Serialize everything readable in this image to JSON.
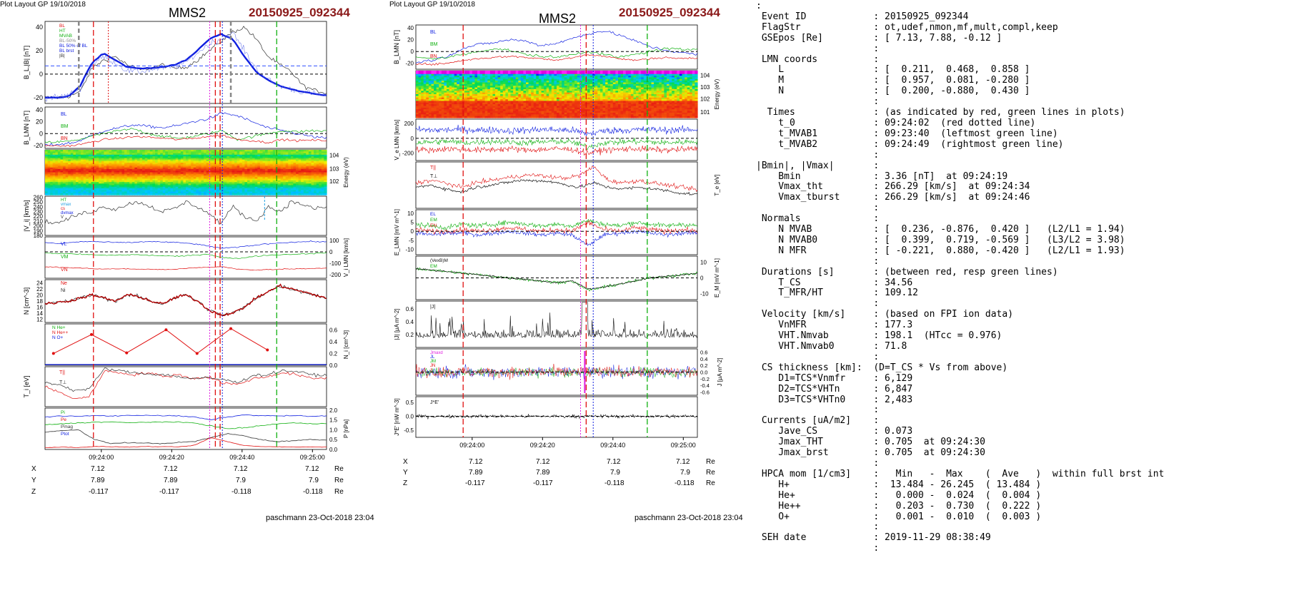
{
  "left_page": {
    "header": "Plot Layout GP 19/10/2018",
    "spacecraft": "MMS2",
    "event": "20150925_092344",
    "footer": "paschmann 23-Oct-2018 23:04",
    "coords": {
      "labels": [
        "X",
        "Y",
        "Z"
      ],
      "unit": "Re",
      "values": [
        [
          "7.12",
          "7.12",
          "7.12",
          "7.12"
        ],
        [
          "7.89",
          "7.89",
          "7.9",
          "7.9"
        ],
        [
          "-0.117",
          "-0.117",
          "-0.118",
          "-0.118"
        ]
      ]
    },
    "time_ticks": [
      "09:24:00",
      "09:24:20",
      "09:24:40",
      "09:25:00"
    ],
    "panels": [
      {
        "ylabel": "B_L,|B| [nT]",
        "ticks": [
          "40",
          "20",
          "0",
          "-20"
        ],
        "legend": [
          "BL",
          "HT",
          "MVAB",
          "BL-50%",
          "BL 50% of BL",
          "BL brst",
          "|B|"
        ]
      },
      {
        "ylabel": "B_LMN [nT]",
        "ticks": [
          "40",
          "20",
          "0",
          "-20"
        ],
        "legend": [
          "BL",
          "BM",
          "BN"
        ]
      },
      {
        "ylabel": "Energy (eV)",
        "ticks": [
          "10^4",
          "10^3",
          "10^2"
        ]
      },
      {
        "ylabel": "|V_i| [km/s]",
        "ticks": [
          "260",
          "250",
          "240",
          "230",
          "220",
          "210",
          "200",
          "190",
          "180"
        ],
        "legend": [
          "HT",
          "vmax",
          "cs",
          "dvmax",
          "V"
        ]
      },
      {
        "ylabel": "V_i LMN [km/s]",
        "ticks": [
          "100",
          "0",
          "-100",
          "-200"
        ],
        "legend": [
          "VL",
          "VM",
          "VN"
        ]
      },
      {
        "ylabel": "N [cm^-3]",
        "ticks": [
          "24",
          "22",
          "20",
          "18",
          "16",
          "14",
          "12"
        ],
        "legend": [
          "Ne",
          "Ni"
        ]
      },
      {
        "ylabel": "N_i [cm^-3]",
        "ticks": [
          "0.6",
          "0.4",
          "0.2",
          "0.0"
        ],
        "legend": [
          "N He+",
          "N He++",
          "N O+"
        ]
      },
      {
        "ylabel": "T_i [eV]",
        "legend": [
          "T||",
          "T⊥"
        ]
      },
      {
        "ylabel": "P [nPa]",
        "ticks": [
          "2.0",
          "1.5",
          "1.0",
          "0.5",
          "0.0"
        ],
        "legend": [
          "Pi",
          "Pe",
          "Pmag",
          "Ptot"
        ]
      }
    ]
  },
  "mid_page": {
    "header": "Plot Layout GP 19/10/2018",
    "spacecraft": "MMS2",
    "event": "20150925_092344",
    "footer": "paschmann 23-Oct-2018 23:04",
    "coords": {
      "labels": [
        "X",
        "Y",
        "Z"
      ],
      "unit": "Re",
      "values": [
        [
          "7.12",
          "7.12",
          "7.12",
          "7.12"
        ],
        [
          "7.89",
          "7.89",
          "7.9",
          "7.9"
        ],
        [
          "-0.117",
          "-0.117",
          "-0.118",
          "-0.118"
        ]
      ]
    },
    "time_ticks": [
      "09:24:00",
      "09:24:20",
      "09:24:40",
      "09:25:00"
    ],
    "panels": [
      {
        "ylabel": "B_LMN [nT]",
        "ticks": [
          "40",
          "20",
          "0",
          "-20"
        ],
        "legend": [
          "BL",
          "BM",
          "BN"
        ]
      },
      {
        "ylabel": "Energy (eV)",
        "ticks": [
          "10^4",
          "10^3",
          "10^2",
          "10^1"
        ]
      },
      {
        "ylabel": "V_e LMN [km/s]",
        "ticks": [
          "200",
          "0",
          "-200"
        ],
        "legend": [
          "VL",
          "VM",
          "VN"
        ]
      },
      {
        "ylabel": "T_e [eV]",
        "legend": [
          "T||",
          "T⊥"
        ]
      },
      {
        "ylabel": "E_LMN [mV m^-1]",
        "ticks": [
          "10",
          "5",
          "0",
          "-5",
          "-10"
        ],
        "legend": [
          "EL",
          "EM",
          "EN"
        ]
      },
      {
        "ylabel": "E_M [mV m^-1]",
        "ticks": [
          "10",
          "0",
          "-10"
        ],
        "legend": [
          "(VexB)M",
          "EM"
        ]
      },
      {
        "ylabel": "|J| [µA m^-2]",
        "ticks": [
          "0.6",
          "0.4",
          "0.2"
        ],
        "legend": [
          "|J|"
        ]
      },
      {
        "ylabel": "J [µA m^-2]",
        "ticks": [
          "0.6",
          "0.4",
          "0.2",
          "0.0",
          "-0.2",
          "-0.4",
          "-0.6"
        ],
        "legend": [
          "Jmaxd",
          "JL",
          "JM",
          "JN"
        ]
      },
      {
        "ylabel": "J*E' [nW m^-3]",
        "ticks": [
          "0.5",
          "0.0",
          "-0.5"
        ],
        "legend": [
          "J*E'"
        ]
      }
    ]
  },
  "info": {
    "lines": [
      ":",
      " Event ID            : 20150925_092344",
      " FlagStr             : ot,udef,nmon,mf,mult,compl,keep",
      " GSEpos [Re]         : [ 7.13, 7.88, -0.12 ]",
      "                     :",
      " LMN coords          :",
      "    L                : [  0.211,  0.468,  0.858 ]",
      "    M                : [  0.957,  0.081, -0.280 ]",
      "    N                : [  0.200, -0.880,  0.430 ]",
      "                     :",
      "  Times              : (as indicated by red, green lines in plots)",
      "    t_0              : 09:24:02  (red dotted line)",
      "    t_MVAB1          : 09:23:40  (leftmost green line)",
      "    t_MVAB2          : 09:24:49  (rightmost green line)",
      "                     :",
      "|Bmin|, |Vmax|       :",
      "    Bmin             : 3.36 [nT]  at 09:24:19",
      "    Vmax_tht         : 266.29 [km/s]  at 09:24:34",
      "    Vmax_tburst      : 266.29 [km/s]  at 09:24:46",
      "                     :",
      " Normals             :",
      "    N MVAB           : [  0.236, -0.876,  0.420 ]   (L2/L1 = 1.94)",
      "    N MVAB0          : [  0.399,  0.719, -0.569 ]   (L3/L2 = 3.98)",
      "    N MFR            : [ -0.221,  0.880, -0.420 ]   (L2/L1 = 1.93)",
      "                     :",
      " Durations [s]       : (between red, resp green lines)",
      "    T_CS             : 34.56",
      "    T_MFR/HT         : 109.12",
      "                     :",
      " Velocity [km/s]     : (based on FPI ion data)",
      "    VnMFR            : 177.3",
      "    VHT.Nmvab        : 198.1  (HTcc = 0.976)",
      "    VHT.Nmvab0       : 71.8",
      "                     :",
      " CS thickness [km]:  (D=T_CS * Vs from above)",
      "    D1=TCS*Vnmfr     : 6,129",
      "    D2=TCS*VHTn      : 6,847",
      "    D3=TCS*VHTn0     : 2,483",
      "                     :",
      " Currents [uA/m2]    :",
      "    Jave_CS          : 0.073",
      "    Jmax_THT         : 0.705  at 09:24:30",
      "    Jmax_brst        : 0.705  at 09:24:30",
      "                     :",
      " HPCA mom [1/cm3]    :   Min   -  Max    (  Ave   )  within full brst int",
      "    H+               :  13.484 - 26.245  ( 13.484 )",
      "    He+              :   0.000 -  0.024  (  0.004 )",
      "    He++             :   0.203 -  0.730  (  0.222 )",
      "    O+               :   0.001 -  0.010  (  0.003 )",
      "                     :",
      " SEH date            : 2019-11-29 08:38:49",
      "                     :"
    ]
  },
  "colors": {
    "red": "#e01010",
    "green": "#10b010",
    "blue": "#1020e0",
    "black": "#000000",
    "event": "#8b1a1a"
  },
  "chart_data": [
    {
      "type": "line",
      "title": "MMS2 20150925_092344",
      "xlabel": "",
      "x_ticks": [
        "09:24:00",
        "09:24:20",
        "09:24:40",
        "09:25:00"
      ],
      "series": [
        {
          "name": "BL",
          "values": [
            -20,
            -20,
            -18,
            10,
            15,
            8,
            5,
            6,
            10,
            30,
            35,
            15,
            -5,
            -10,
            -15
          ]
        },
        {
          "name": "|B|",
          "values": [
            -20,
            -20,
            -10,
            20,
            30,
            25,
            30,
            38,
            42,
            44,
            40,
            30,
            25,
            22,
            20
          ]
        }
      ],
      "ylim": [
        -25,
        45
      ]
    },
    {
      "type": "line",
      "title": "MMS2 20150925_092344",
      "xlabel": "",
      "x_ticks": [
        "09:24:00",
        "09:24:20",
        "09:24:40",
        "09:25:00"
      ],
      "series": [
        {
          "name": "BL",
          "values": [
            -20,
            -15,
            -5,
            10,
            15,
            20,
            35,
            30,
            20,
            5,
            0,
            -5
          ]
        },
        {
          "name": "BM",
          "values": [
            -15,
            -12,
            -10,
            0,
            5,
            -2,
            -10,
            -5,
            0,
            5,
            5,
            3
          ]
        },
        {
          "name": "BN",
          "values": [
            -20,
            -22,
            -20,
            -10,
            -8,
            -5,
            -5,
            -10,
            -12,
            -15,
            -10,
            -12
          ]
        }
      ],
      "ylim": [
        -25,
        45
      ]
    }
  ]
}
